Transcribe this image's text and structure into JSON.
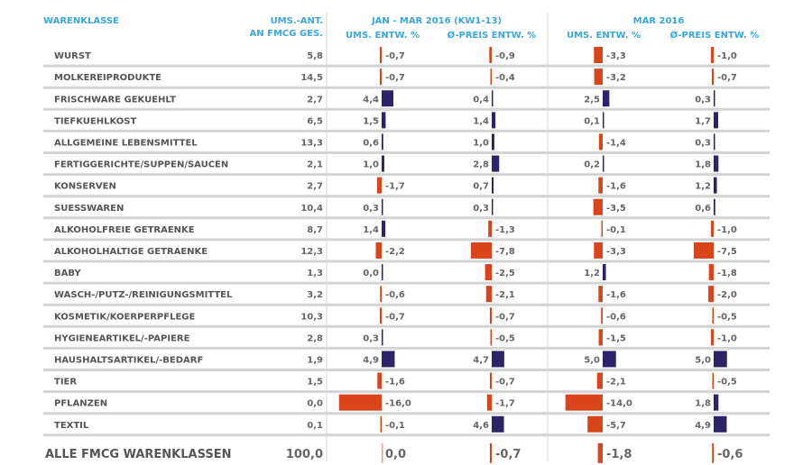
{
  "chart_data": {
    "type": "bar",
    "orientation": "horizontal-diverging",
    "title": "",
    "headers": {
      "category": "WARENKLASSE",
      "share_line1": "UMS.-ANT.",
      "share_line2": "AN FMCG GES.",
      "group1": "JAN - MAR 2016 (KW1-13)",
      "group2": "MAR 2016",
      "col_ums": "UMS. ENTW. %",
      "col_preis": "Ø-PREIS ENTW. %"
    },
    "colors": {
      "positive": "#2b2568",
      "negative": "#d9441b",
      "header": "#3aa8dc"
    },
    "categories": [
      "WURST",
      "MOLKEREIPRODUKTE",
      "FRISCHWARE GEKUEHLT",
      "TIEFKUEHLKOST",
      "ALLGEMEINE LEBENSMITTEL",
      "FERTIGGERICHTE/SUPPEN/SAUCEN",
      "KONSERVEN",
      "SUESSWAREN",
      "ALKOHOLFREIE GETRAENKE",
      "ALKOHOLHALTIGE GETRAENKE",
      "BABY",
      "WASCH-/PUTZ-/REINIGUNGSMITTEL",
      "KOSMETIK/KOERPERPFLEGE",
      "HYGIENEARTIKEL/-PAPIERE",
      "HAUSHALTSARTIKEL/-BEDARF",
      "TIER",
      "PFLANZEN",
      "TEXTIL"
    ],
    "share": [
      "5,8",
      "14,5",
      "2,7",
      "6,5",
      "13,3",
      "2,1",
      "2,7",
      "10,4",
      "8,7",
      "12,3",
      "1,3",
      "3,2",
      "10,3",
      "2,8",
      "1,9",
      "1,5",
      "0,0",
      "0,1"
    ],
    "series": [
      {
        "name": "JAN - MAR 2016 (KW1-13) UMS. ENTW. %",
        "values": [
          -0.7,
          -0.7,
          4.4,
          1.5,
          0.6,
          1.0,
          -1.7,
          0.3,
          1.4,
          -2.2,
          0.0,
          -0.6,
          -0.7,
          0.3,
          4.9,
          -1.6,
          -16.0,
          -0.1
        ]
      },
      {
        "name": "JAN - MAR 2016 (KW1-13) Ø-PREIS ENTW. %",
        "values": [
          -0.9,
          -0.4,
          0.4,
          1.4,
          1.0,
          2.8,
          0.7,
          0.3,
          -1.3,
          -7.8,
          -2.5,
          -2.1,
          -0.7,
          -0.5,
          4.7,
          -0.7,
          -1.7,
          4.6
        ]
      },
      {
        "name": "MAR 2016 UMS. ENTW. %",
        "values": [
          -3.3,
          -3.2,
          2.5,
          0.1,
          -1.4,
          0.2,
          -1.6,
          -3.5,
          -0.1,
          -3.3,
          1.2,
          -1.6,
          -0.6,
          -1.5,
          5.0,
          -2.1,
          -14.0,
          -5.7
        ]
      },
      {
        "name": "MAR 2016 Ø-PREIS ENTW. %",
        "values": [
          -1.0,
          -0.7,
          0.3,
          1.7,
          0.3,
          1.8,
          1.2,
          0.6,
          -1.0,
          -7.5,
          -1.8,
          -2.0,
          -0.5,
          -1.0,
          5.0,
          -0.5,
          1.8,
          4.9
        ]
      }
    ],
    "total": {
      "label": "ALLE FMCG WARENKLASSEN",
      "share": "100,0",
      "values": [
        0.0,
        -0.7,
        -1.8,
        -0.6
      ]
    }
  }
}
